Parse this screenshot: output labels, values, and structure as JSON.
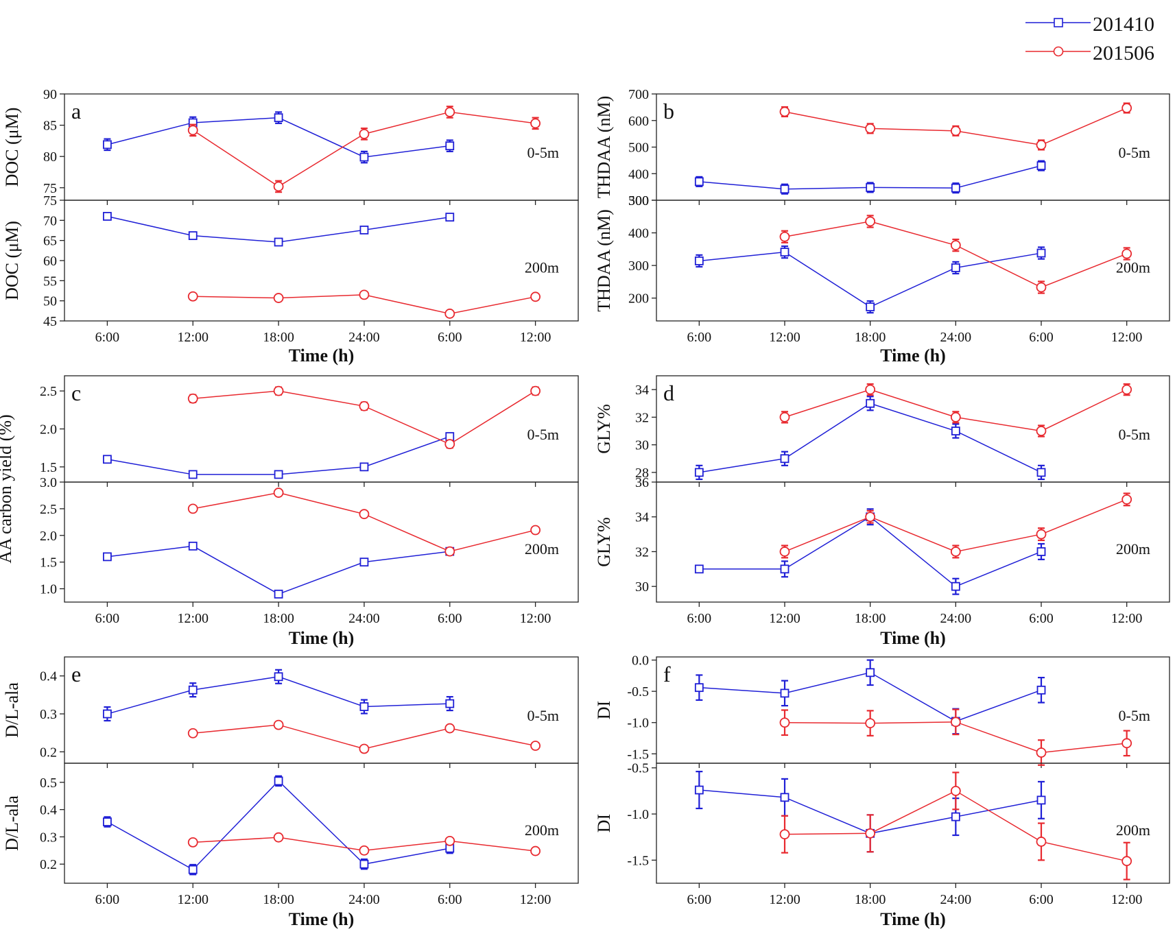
{
  "legend": [
    {
      "name": "201410",
      "color": "#1f1fd6",
      "marker": "square-marker-icon"
    },
    {
      "name": "201506",
      "color": "#e8292f",
      "marker": "circle-marker-icon"
    }
  ],
  "chart_data": [
    {
      "panel": "a",
      "type": "line",
      "xlabel": "Time (h)",
      "categories": [
        "6:00",
        "12:00",
        "18:00",
        "24:00",
        "6:00",
        "12:00"
      ],
      "subplots": [
        {
          "depth": "0-5m",
          "ylabel": "DOC (μM)",
          "ylim": [
            73,
            90
          ],
          "yticks": [
            75,
            80,
            85,
            90
          ],
          "ytick_labels": [
            "75",
            "80",
            "85",
            "90"
          ],
          "series": [
            {
              "name": "201410",
              "values": [
                81.9,
                85.4,
                86.2,
                79.9,
                81.7,
                null
              ],
              "errors": [
                0.9,
                0.9,
                0.9,
                0.9,
                0.9,
                null
              ]
            },
            {
              "name": "201506",
              "values": [
                null,
                84.2,
                75.2,
                83.6,
                87.1,
                85.3
              ],
              "errors": [
                null,
                0.9,
                0.9,
                0.9,
                0.9,
                0.9
              ]
            }
          ]
        },
        {
          "depth": "200m",
          "ylabel": "DOC (μM)",
          "ylim": [
            45,
            75
          ],
          "yticks": [
            45,
            50,
            55,
            60,
            65,
            70,
            75
          ],
          "ytick_labels": [
            "45",
            "50",
            "55",
            "60",
            "65",
            "70",
            "75"
          ],
          "series": [
            {
              "name": "201410",
              "values": [
                71.0,
                66.2,
                64.6,
                67.6,
                70.8,
                null
              ],
              "errors": [
                0.6,
                0.6,
                0.6,
                0.6,
                0.6,
                null
              ]
            },
            {
              "name": "201506",
              "values": [
                null,
                51.1,
                50.7,
                51.5,
                46.8,
                51.0
              ],
              "errors": [
                null,
                0.6,
                0.6,
                0.6,
                0.6,
                0.6
              ]
            }
          ]
        }
      ]
    },
    {
      "panel": "b",
      "type": "line",
      "xlabel": "Time (h)",
      "categories": [
        "6:00",
        "12:00",
        "18:00",
        "24:00",
        "6:00",
        "12:00"
      ],
      "subplots": [
        {
          "depth": "0-5m",
          "ylabel": "THDAA (nM)",
          "ylim": [
            300,
            700
          ],
          "yticks": [
            300,
            400,
            500,
            600,
            700
          ],
          "ytick_labels": [
            "300",
            "400",
            "500",
            "600",
            "700"
          ],
          "series": [
            {
              "name": "201410",
              "values": [
                370,
                342,
                348,
                346,
                430,
                null
              ],
              "errors": [
                18,
                18,
                18,
                18,
                18,
                null
              ]
            },
            {
              "name": "201506",
              "values": [
                null,
                633,
                570,
                561,
                508,
                647
              ],
              "errors": [
                null,
                18,
                18,
                18,
                18,
                18
              ]
            }
          ]
        },
        {
          "depth": "200m",
          "ylabel": "THDAA (nM)",
          "ylim": [
            130,
            500
          ],
          "yticks": [
            200,
            300,
            400,
            500
          ],
          "ytick_labels": [
            "200",
            "300",
            "400",
            "500"
          ],
          "series": [
            {
              "name": "201410",
              "values": [
                314,
                341,
                173,
                293,
                338,
                null
              ],
              "errors": [
                18,
                18,
                18,
                18,
                18,
                null
              ]
            },
            {
              "name": "201506",
              "values": [
                null,
                388,
                435,
                362,
                233,
                336
              ],
              "errors": [
                null,
                18,
                18,
                18,
                18,
                18
              ]
            }
          ]
        }
      ]
    },
    {
      "panel": "c",
      "type": "line",
      "xlabel": "Time (h)",
      "categories": [
        "6:00",
        "12:00",
        "18:00",
        "24:00",
        "6:00",
        "12:00"
      ],
      "ylabel": "AA carbon yield (%)",
      "subplots": [
        {
          "depth": "0-5m",
          "ylim": [
            1.3,
            2.7
          ],
          "yticks": [
            1.5,
            2.0,
            2.5
          ],
          "ytick_labels": [
            "1.5",
            "2.0",
            "2.5"
          ],
          "series": [
            {
              "name": "201410",
              "values": [
                1.6,
                1.4,
                1.4,
                1.5,
                1.9,
                null
              ],
              "errors": [
                0.02,
                0.02,
                0.02,
                0.02,
                0.02,
                null
              ]
            },
            {
              "name": "201506",
              "values": [
                null,
                2.4,
                2.5,
                2.3,
                1.8,
                2.5
              ],
              "errors": [
                null,
                0.05,
                0.05,
                0.05,
                0.05,
                0.05
              ]
            }
          ]
        },
        {
          "depth": "200m",
          "ylim": [
            0.75,
            3.0
          ],
          "yticks": [
            1.0,
            1.5,
            2.0,
            2.5,
            3.0
          ],
          "ytick_labels": [
            "1.0",
            "1.5",
            "2.0",
            "2.5",
            "3.0"
          ],
          "series": [
            {
              "name": "201410",
              "values": [
                1.6,
                1.8,
                0.9,
                1.5,
                1.7,
                null
              ],
              "errors": [
                0.05,
                0.05,
                0.05,
                0.05,
                0.05,
                null
              ]
            },
            {
              "name": "201506",
              "values": [
                null,
                2.5,
                2.8,
                2.4,
                1.7,
                2.1
              ],
              "errors": [
                null,
                0.05,
                0.05,
                0.05,
                0.05,
                0.05
              ]
            }
          ]
        }
      ]
    },
    {
      "panel": "d",
      "type": "line",
      "xlabel": "Time (h)",
      "categories": [
        "6:00",
        "12:00",
        "18:00",
        "24:00",
        "6:00",
        "12:00"
      ],
      "subplots": [
        {
          "depth": "0-5m",
          "ylabel": "GLY%",
          "ylim": [
            27.3,
            35
          ],
          "yticks": [
            28,
            30,
            32,
            34
          ],
          "ytick_labels": [
            "28",
            "30",
            "32",
            "34"
          ],
          "series": [
            {
              "name": "201410",
              "values": [
                28,
                29,
                33,
                31,
                28,
                null
              ],
              "errors": [
                0.5,
                0.5,
                0.5,
                0.5,
                0.5,
                null
              ]
            },
            {
              "name": "201506",
              "values": [
                null,
                32,
                34,
                32,
                31,
                34
              ],
              "errors": [
                null,
                0.4,
                0.4,
                0.4,
                0.4,
                0.4
              ]
            }
          ]
        },
        {
          "depth": "200m",
          "ylabel": "GLY%",
          "ylim": [
            29.1,
            36
          ],
          "yticks": [
            30,
            32,
            34,
            36
          ],
          "ytick_labels": [
            "30",
            "32",
            "34",
            "36"
          ],
          "series": [
            {
              "name": "201410",
              "values": [
                31,
                31,
                34,
                30,
                32,
                null
              ],
              "errors": [
                0,
                0.45,
                0.45,
                0.45,
                0.45,
                null
              ]
            },
            {
              "name": "201506",
              "values": [
                null,
                32,
                34,
                32,
                33,
                35
              ],
              "errors": [
                null,
                0.35,
                0.35,
                0.35,
                0.35,
                0.35
              ]
            }
          ]
        }
      ]
    },
    {
      "panel": "e",
      "type": "line",
      "xlabel": "Time (h)",
      "categories": [
        "6:00",
        "12:00",
        "18:00",
        "24:00",
        "6:00",
        "12:00"
      ],
      "subplots": [
        {
          "depth": "0-5m",
          "ylabel": "D/L-ala",
          "ylim": [
            0.17,
            0.45
          ],
          "yticks": [
            0.2,
            0.3,
            0.4
          ],
          "ytick_labels": [
            "0.2",
            "0.3",
            "0.4"
          ],
          "series": [
            {
              "name": "201410",
              "values": [
                0.3,
                0.363,
                0.398,
                0.319,
                0.327,
                null
              ],
              "errors": [
                0.018,
                0.018,
                0.018,
                0.018,
                0.018,
                null
              ]
            },
            {
              "name": "201506",
              "values": [
                null,
                0.249,
                0.271,
                0.208,
                0.262,
                0.216
              ],
              "errors": [
                null,
                0.008,
                0.008,
                0.008,
                0.008,
                0.008
              ]
            }
          ]
        },
        {
          "depth": "200m",
          "ylabel": "D/L-ala",
          "ylim": [
            0.13,
            0.57
          ],
          "yticks": [
            0.2,
            0.3,
            0.4,
            0.5
          ],
          "ytick_labels": [
            "0.2",
            "0.3",
            "0.4",
            "0.5"
          ],
          "series": [
            {
              "name": "201410",
              "values": [
                0.355,
                0.18,
                0.505,
                0.2,
                0.258,
                null
              ],
              "errors": [
                0.018,
                0.018,
                0.018,
                0.018,
                0.018,
                null
              ]
            },
            {
              "name": "201506",
              "values": [
                null,
                0.28,
                0.298,
                0.25,
                0.285,
                0.248
              ],
              "errors": [
                null,
                0.008,
                0.008,
                0.008,
                0.008,
                0.008
              ]
            }
          ]
        }
      ]
    },
    {
      "panel": "f",
      "type": "line",
      "xlabel": "Time (h)",
      "categories": [
        "6:00",
        "12:00",
        "18:00",
        "24:00",
        "6:00",
        "12:00"
      ],
      "subplots": [
        {
          "depth": "0-5m",
          "ylabel": "DI",
          "ylim": [
            -1.65,
            0.05
          ],
          "yticks": [
            -1.5,
            -1.0,
            -0.5,
            0.0
          ],
          "ytick_labels": [
            "-1.5",
            "-1.0",
            "-0.5",
            "0.0"
          ],
          "series": [
            {
              "name": "201410",
              "values": [
                -0.44,
                -0.53,
                -0.2,
                -0.98,
                -0.48,
                null
              ],
              "errors": [
                0.2,
                0.2,
                0.2,
                0.2,
                0.2,
                null
              ]
            },
            {
              "name": "201506",
              "values": [
                null,
                -1.0,
                -1.01,
                -0.99,
                -1.48,
                -1.33
              ],
              "errors": [
                null,
                0.2,
                0.2,
                0.2,
                0.2,
                0.2
              ]
            }
          ]
        },
        {
          "depth": "200m",
          "ylabel": "DI",
          "ylim": [
            -1.75,
            -0.45
          ],
          "yticks": [
            -1.5,
            -1.0,
            -0.5
          ],
          "ytick_labels": [
            "-1.5",
            "-1.0",
            "-0.5"
          ],
          "series": [
            {
              "name": "201410",
              "values": [
                -0.74,
                -0.82,
                -1.21,
                -1.03,
                -0.85,
                null
              ],
              "errors": [
                0.2,
                0.2,
                0.2,
                0.2,
                0.2,
                null
              ]
            },
            {
              "name": "201506",
              "values": [
                null,
                -1.22,
                -1.21,
                -0.75,
                -1.3,
                -1.51
              ],
              "errors": [
                null,
                0.2,
                0.2,
                0.2,
                0.2,
                0.2
              ]
            }
          ]
        }
      ]
    }
  ]
}
